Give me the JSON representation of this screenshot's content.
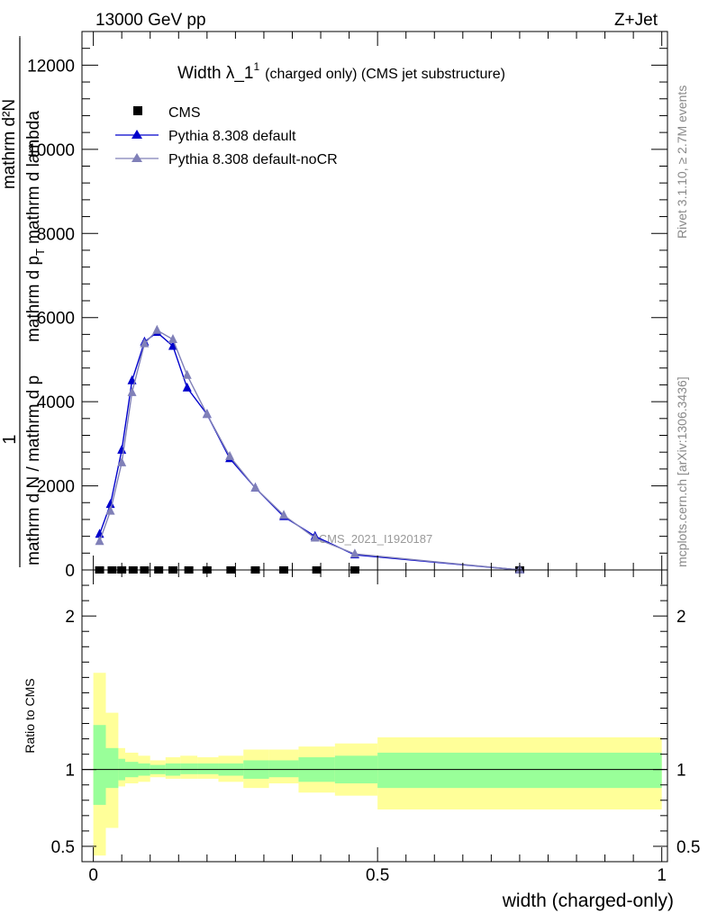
{
  "header": {
    "left": "13000 GeV pp",
    "right": "Z+Jet"
  },
  "side_text": {
    "top": "Rivet 3.1.10, ≥ 2.7M events",
    "bottom": "mcplots.cern.ch [arXiv:1306.3436]"
  },
  "watermark": "CMS_2021_I1920187",
  "colors": {
    "cms": "#000000",
    "default": "#0000cc",
    "nocr": "#8080b8",
    "band_outer": "#ffff99",
    "band_inner": "#99ff99"
  },
  "chart_data": [
    {
      "type": "line",
      "title": "Width λ_1",
      "title_sup": "1",
      "title_suffix": "(charged only) (CMS jet substructure)",
      "ylabel": {
        "lead": "1",
        "denominator": "mathrm d N / mathrm d p",
        "right_block": {
          "numerator": "mathrm d²N",
          "denominator": "mathrm d p",
          "denominator_sub": "T",
          "denominator_tail": "mathrm d lambda"
        }
      },
      "ylim": [
        0,
        12800
      ],
      "yticks": [
        0,
        2000,
        4000,
        6000,
        8000,
        10000,
        12000
      ],
      "ytick_labels": [
        "0",
        "2000",
        "4000",
        "6000",
        "8000",
        "10000",
        "12000"
      ],
      "legend": [
        "CMS",
        "Pythia 8.308 default",
        "Pythia 8.308 default-noCR"
      ],
      "series": [
        {
          "name": "CMS",
          "marker": "square",
          "x": [
            0.011,
            0.033,
            0.05,
            0.07,
            0.09,
            0.115,
            0.14,
            0.168,
            0.2,
            0.242,
            0.285,
            0.335,
            0.393,
            0.46,
            0.75
          ],
          "y": [
            0,
            0,
            0,
            0,
            0,
            0,
            0,
            0,
            0,
            0,
            0,
            0,
            0,
            0,
            0
          ]
        },
        {
          "name": "Pythia 8.308 default",
          "marker": "triangle",
          "x": [
            0.011,
            0.03,
            0.05,
            0.068,
            0.09,
            0.112,
            0.14,
            0.165,
            0.2,
            0.24,
            0.285,
            0.335,
            0.39,
            0.46,
            0.75
          ],
          "y": [
            850,
            1560,
            2850,
            4500,
            5420,
            5650,
            5320,
            4330,
            3700,
            2650,
            1950,
            1270,
            800,
            360,
            0
          ]
        },
        {
          "name": "Pythia 8.308 default-noCR",
          "marker": "triangle",
          "x": [
            0.011,
            0.03,
            0.05,
            0.068,
            0.09,
            0.112,
            0.14,
            0.165,
            0.2,
            0.24,
            0.285,
            0.335,
            0.39,
            0.46,
            0.75
          ],
          "y": [
            680,
            1400,
            2550,
            4220,
            5380,
            5700,
            5480,
            4630,
            3700,
            2700,
            1950,
            1300,
            760,
            380,
            0
          ]
        }
      ]
    },
    {
      "type": "area",
      "ylabel": "Ratio to CMS",
      "xlabel": "width (charged-only)",
      "xlim": [
        -0.02,
        1.01
      ],
      "xticks": [
        0,
        0.5,
        1
      ],
      "xtick_labels": [
        "0",
        "0.5",
        "1"
      ],
      "ylim": [
        0.4,
        2.3
      ],
      "ytick_labels_left": [
        "0.5",
        "1",
        "2"
      ],
      "ytick_values": [
        0.5,
        1,
        2
      ],
      "ytick_labels_right": [
        "0.5",
        "1",
        "2"
      ],
      "bin_edges": [
        0,
        0.022,
        0.044,
        0.056,
        0.079,
        0.1,
        0.127,
        0.153,
        0.183,
        0.22,
        0.264,
        0.309,
        0.361,
        0.425,
        0.5,
        1
      ],
      "bands": [
        {
          "name": "outer",
          "lo": [
            0.44,
            0.62,
            0.89,
            0.91,
            0.92,
            0.95,
            0.94,
            0.94,
            0.94,
            0.92,
            0.88,
            0.91,
            0.85,
            0.83,
            0.74
          ],
          "hi": [
            1.63,
            1.37,
            1.14,
            1.11,
            1.09,
            1.06,
            1.08,
            1.09,
            1.08,
            1.09,
            1.13,
            1.13,
            1.15,
            1.17,
            1.21
          ]
        },
        {
          "name": "inner",
          "lo": [
            0.77,
            0.88,
            0.93,
            0.95,
            0.96,
            0.97,
            0.96,
            0.97,
            0.97,
            0.96,
            0.94,
            0.95,
            0.92,
            0.91,
            0.88
          ],
          "hi": [
            1.29,
            1.14,
            1.07,
            1.05,
            1.04,
            1.03,
            1.04,
            1.04,
            1.04,
            1.04,
            1.06,
            1.06,
            1.08,
            1.09,
            1.11
          ]
        }
      ],
      "reference": 1
    }
  ]
}
